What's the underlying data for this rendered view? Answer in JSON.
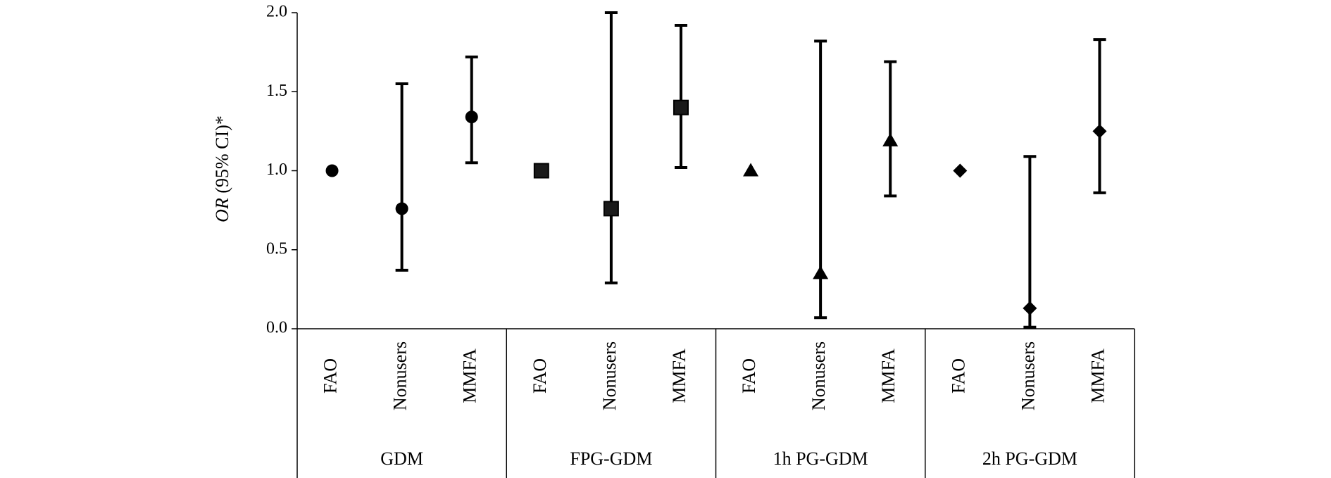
{
  "chart_data": {
    "type": "scatter",
    "ylabel": {
      "italic": "OR",
      "rest": " (95% CI)*"
    },
    "ylim": [
      0,
      2
    ],
    "yticks": [
      "0.0",
      "0.5",
      "1.0",
      "1.5",
      "2.0"
    ],
    "grid": false,
    "groups": [
      {
        "name": "GDM",
        "marker": "circle",
        "points": [
          {
            "category": "FAO",
            "or": 1.0
          },
          {
            "category": "Nonusers",
            "or": 0.76,
            "lower": 0.37,
            "upper": 1.55
          },
          {
            "category": "MMFA",
            "or": 1.34,
            "lower": 1.05,
            "upper": 1.72
          }
        ]
      },
      {
        "name": "FPG-GDM",
        "marker": "square",
        "points": [
          {
            "category": "FAO",
            "or": 1.0
          },
          {
            "category": "Nonusers",
            "or": 0.76,
            "lower": 0.29,
            "upper": 2.0
          },
          {
            "category": "MMFA",
            "or": 1.4,
            "lower": 1.02,
            "upper": 1.92
          }
        ]
      },
      {
        "name": "1h PG-GDM",
        "marker": "triangle",
        "points": [
          {
            "category": "FAO",
            "or": 1.0
          },
          {
            "category": "Nonusers",
            "or": 0.35,
            "lower": 0.07,
            "upper": 1.82
          },
          {
            "category": "MMFA",
            "or": 1.19,
            "lower": 0.84,
            "upper": 1.69
          }
        ]
      },
      {
        "name": "2h PG-GDM",
        "marker": "diamond",
        "points": [
          {
            "category": "FAO",
            "or": 1.0
          },
          {
            "category": "Nonusers",
            "or": 0.13,
            "lower": 0.01,
            "upper": 1.09
          },
          {
            "category": "MMFA",
            "or": 1.25,
            "lower": 0.86,
            "upper": 1.83
          }
        ]
      }
    ]
  }
}
